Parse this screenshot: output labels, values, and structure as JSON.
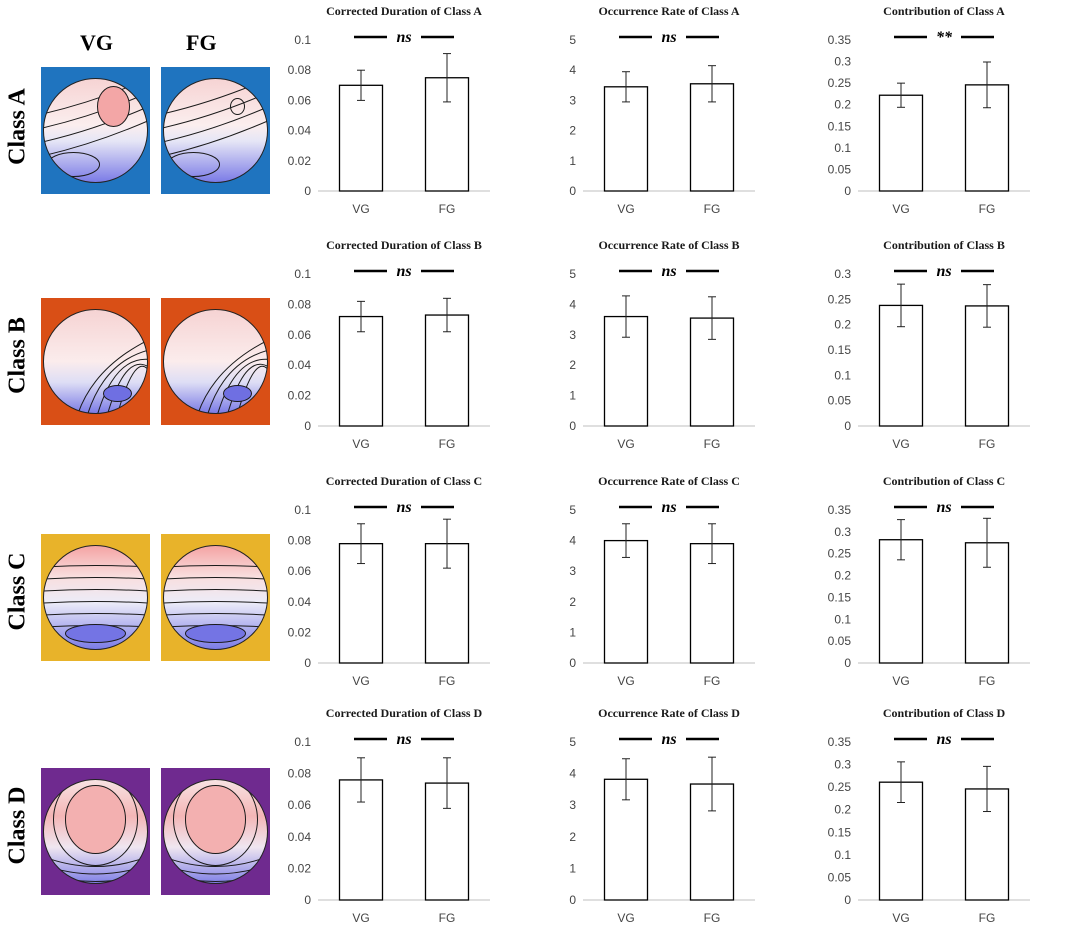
{
  "header": {
    "vg_label": "VG",
    "fg_label": "FG"
  },
  "colors": {
    "class_a": "#1f74bf",
    "class_b": "#d94f16",
    "class_c": "#e8b32a",
    "class_d": "#6f2a8f"
  },
  "rows": [
    {
      "label": "Class A",
      "bg_color": "#1f74bf",
      "maps": [
        "topomap-vg-class-a",
        "topomap-fg-class-a"
      ]
    },
    {
      "label": "Class B",
      "bg_color": "#d94f16",
      "maps": [
        "topomap-vg-class-b",
        "topomap-fg-class-b"
      ]
    },
    {
      "label": "Class C",
      "bg_color": "#e8b32a",
      "maps": [
        "topomap-vg-class-c",
        "topomap-fg-class-c"
      ]
    },
    {
      "label": "Class D",
      "bg_color": "#6f2a8f",
      "maps": [
        "topomap-vg-class-d",
        "topomap-fg-class-d"
      ]
    }
  ],
  "chart_data": [
    {
      "type": "bar",
      "title": "Corrected Duration of Class A",
      "categories": [
        "VG",
        "FG"
      ],
      "values": [
        0.07,
        0.075
      ],
      "errors": [
        0.01,
        0.016
      ],
      "ylim": [
        0,
        0.1
      ],
      "ticks": [
        "0",
        "0.02",
        "0.04",
        "0.06",
        "0.08",
        "0.1"
      ],
      "significance": "ns",
      "grid": false
    },
    {
      "type": "bar",
      "title": "Occurrence Rate of Class A",
      "categories": [
        "VG",
        "FG"
      ],
      "values": [
        3.45,
        3.55
      ],
      "errors": [
        0.5,
        0.6
      ],
      "ylim": [
        0,
        5
      ],
      "ticks": [
        "0",
        "1",
        "2",
        "3",
        "4",
        "5"
      ],
      "significance": "ns",
      "grid": false
    },
    {
      "type": "bar",
      "title": "Contribution of Class A",
      "categories": [
        "VG",
        "FG"
      ],
      "values": [
        0.222,
        0.246
      ],
      "errors": [
        0.028,
        0.053
      ],
      "ylim": [
        0,
        0.35
      ],
      "ticks": [
        "0",
        "0.05",
        "0.1",
        "0.15",
        "0.2",
        "0.25",
        "0.3",
        "0.35"
      ],
      "significance": "**",
      "grid": false
    },
    {
      "type": "bar",
      "title": "Corrected Duration of Class B",
      "categories": [
        "VG",
        "FG"
      ],
      "values": [
        0.072,
        0.073
      ],
      "errors": [
        0.01,
        0.011
      ],
      "ylim": [
        0,
        0.1
      ],
      "ticks": [
        "0",
        "0.02",
        "0.04",
        "0.06",
        "0.08",
        "0.1"
      ],
      "significance": "ns",
      "grid": false
    },
    {
      "type": "bar",
      "title": "Occurrence Rate of Class B",
      "categories": [
        "VG",
        "FG"
      ],
      "values": [
        3.6,
        3.55
      ],
      "errors": [
        0.68,
        0.7
      ],
      "ylim": [
        0,
        5
      ],
      "ticks": [
        "0",
        "1",
        "2",
        "3",
        "4",
        "5"
      ],
      "significance": "ns",
      "grid": false
    },
    {
      "type": "bar",
      "title": "Contribution of Class B",
      "categories": [
        "VG",
        "FG"
      ],
      "values": [
        0.238,
        0.237
      ],
      "errors": [
        0.042,
        0.042
      ],
      "ylim": [
        0,
        0.3
      ],
      "ticks": [
        "0",
        "0.05",
        "0.1",
        "0.15",
        "0.2",
        "0.25",
        "0.3"
      ],
      "significance": "ns",
      "grid": false
    },
    {
      "type": "bar",
      "title": "Corrected Duration of Class C",
      "categories": [
        "VG",
        "FG"
      ],
      "values": [
        0.078,
        0.078
      ],
      "errors": [
        0.013,
        0.016
      ],
      "ylim": [
        0,
        0.1
      ],
      "ticks": [
        "0",
        "0.02",
        "0.04",
        "0.06",
        "0.08",
        "0.1"
      ],
      "significance": "ns",
      "grid": false
    },
    {
      "type": "bar",
      "title": "Occurrence Rate of Class C",
      "categories": [
        "VG",
        "FG"
      ],
      "values": [
        4.0,
        3.9
      ],
      "errors": [
        0.55,
        0.65
      ],
      "ylim": [
        0,
        5
      ],
      "ticks": [
        "0",
        "1",
        "2",
        "3",
        "4",
        "5"
      ],
      "significance": "ns",
      "grid": false
    },
    {
      "type": "bar",
      "title": "Contribution of Class C",
      "categories": [
        "VG",
        "FG"
      ],
      "values": [
        0.282,
        0.275
      ],
      "errors": [
        0.046,
        0.056
      ],
      "ylim": [
        0,
        0.35
      ],
      "ticks": [
        "0",
        "0.05",
        "0.1",
        "0.15",
        "0.2",
        "0.25",
        "0.3",
        "0.35"
      ],
      "significance": "ns",
      "grid": false
    },
    {
      "type": "bar",
      "title": "Corrected Duration of Class D",
      "categories": [
        "VG",
        "FG"
      ],
      "values": [
        0.076,
        0.074
      ],
      "errors": [
        0.014,
        0.016
      ],
      "ylim": [
        0,
        0.1
      ],
      "ticks": [
        "0",
        "0.02",
        "0.04",
        "0.06",
        "0.08",
        "0.1"
      ],
      "significance": "ns",
      "grid": false
    },
    {
      "type": "bar",
      "title": "Occurrence Rate of Class D",
      "categories": [
        "VG",
        "FG"
      ],
      "values": [
        3.82,
        3.67
      ],
      "errors": [
        0.65,
        0.85
      ],
      "ylim": [
        0,
        5
      ],
      "ticks": [
        "0",
        "1",
        "2",
        "3",
        "4",
        "5"
      ],
      "significance": "ns",
      "grid": false
    },
    {
      "type": "bar",
      "title": "Contribution of Class D",
      "categories": [
        "VG",
        "FG"
      ],
      "values": [
        0.261,
        0.246
      ],
      "errors": [
        0.045,
        0.05
      ],
      "ylim": [
        0,
        0.35
      ],
      "ticks": [
        "0",
        "0.05",
        "0.1",
        "0.15",
        "0.2",
        "0.25",
        "0.3",
        "0.35"
      ],
      "significance": "ns",
      "grid": false
    }
  ]
}
